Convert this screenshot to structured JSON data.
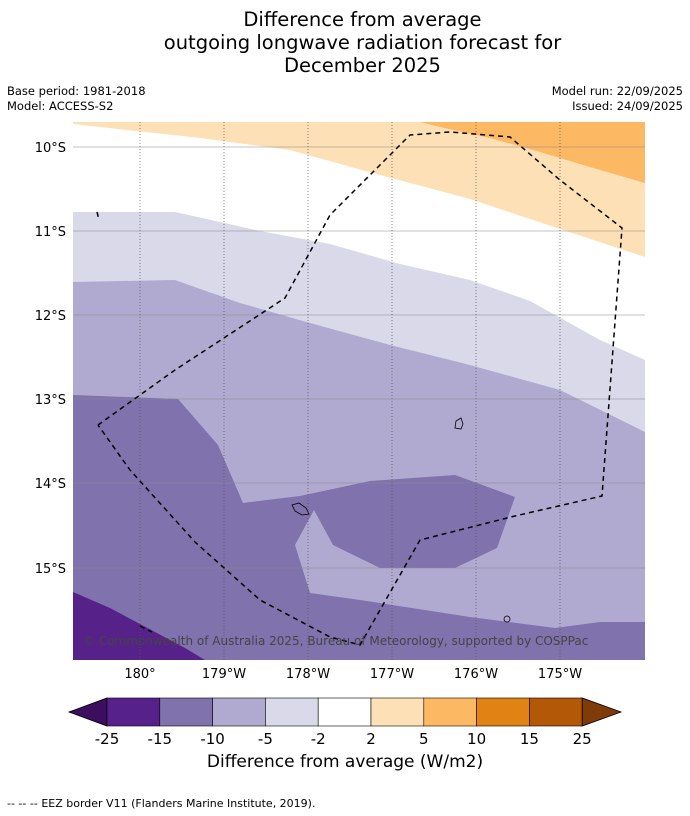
{
  "title": {
    "line1": "Difference from average",
    "line2": "outgoing longwave radiation forecast for",
    "line3": "December 2025"
  },
  "meta": {
    "base_period": "Base period: 1981-2018",
    "model": "Model: ACCESS-S2",
    "model_run": "Model run: 22/09/2025",
    "issued": "Issued: 24/09/2025"
  },
  "map": {
    "lat_labels": [
      "10°S",
      "11°S",
      "12°S",
      "13°S",
      "14°S",
      "15°S"
    ],
    "lon_labels": [
      "180°",
      "179°W",
      "178°W",
      "177°W",
      "176°W",
      "175°W"
    ],
    "copyright": "© Commonwealth of Australia 2025, Bureau of Meteorology, supported by COSPPac",
    "colors": {
      "c_-25": "#3d0d5e",
      "c_-15": "#56228a",
      "c_-10": "#7f72ad",
      "c_-5": "#b0aad1",
      "c_-2": "#d9d9ea",
      "c_0": "#ffffff",
      "c_2": "#fee0b6",
      "c_5": "#fdb863",
      "c_10": "#e08214",
      "c_15": "#b35806",
      "c_25": "#7f3b08"
    }
  },
  "colorbar": {
    "ticks": [
      "-25",
      "-15",
      "-10",
      "-5",
      "-2",
      "2",
      "5",
      "10",
      "15",
      "25"
    ],
    "colors": [
      "#56228a",
      "#7f72ad",
      "#b0aad1",
      "#d9d9ea",
      "#ffffff",
      "#fee0b6",
      "#fdb863",
      "#e08214",
      "#b35806"
    ],
    "low_extend_color": "#3d0d5e",
    "high_extend_color": "#7f3b08",
    "label": "Difference from average (W/m2)"
  },
  "footer": {
    "legend_symbol": "--  --  --",
    "legend_text": "EEZ border V11 (Flanders Marine Institute, 2019)."
  }
}
